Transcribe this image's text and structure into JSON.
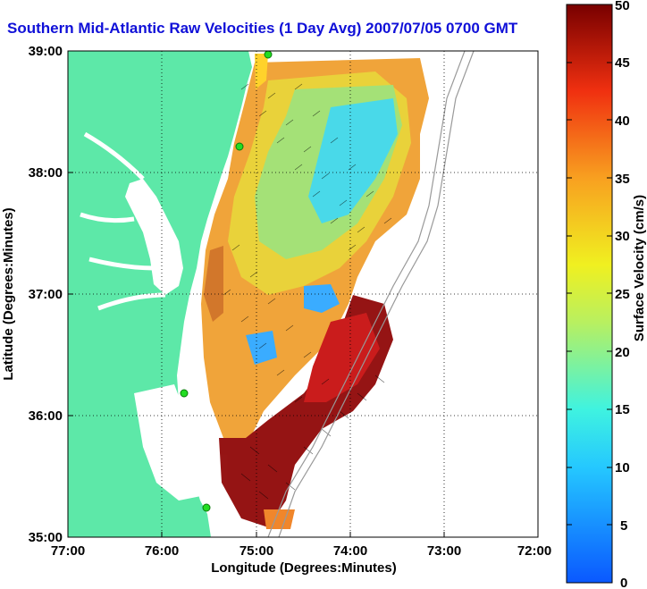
{
  "title": "Southern Mid-Atlantic Raw Velocities (1 Day Avg) 2007/07/05 0700 GMT",
  "xlabel": "Longitude (Degrees:Minutes)",
  "ylabel": "Latitude (Degrees:Minutes)",
  "x_ticks": [
    "77:00",
    "76:00",
    "75:00",
    "74:00",
    "73:00",
    "72:00"
  ],
  "y_ticks": [
    "39:00",
    "38:00",
    "37:00",
    "36:00",
    "35:00"
  ],
  "colorbar": {
    "label": "Surface Velocity (cm/s)",
    "ticks": [
      "0",
      "5",
      "10",
      "15",
      "20",
      "25",
      "30",
      "35",
      "40",
      "45",
      "50"
    ],
    "range": [
      0,
      50
    ]
  },
  "colors": {
    "land": "#5de8a8",
    "water": "#ffffff",
    "station": "#22dd22",
    "title": "#1010d8"
  }
}
